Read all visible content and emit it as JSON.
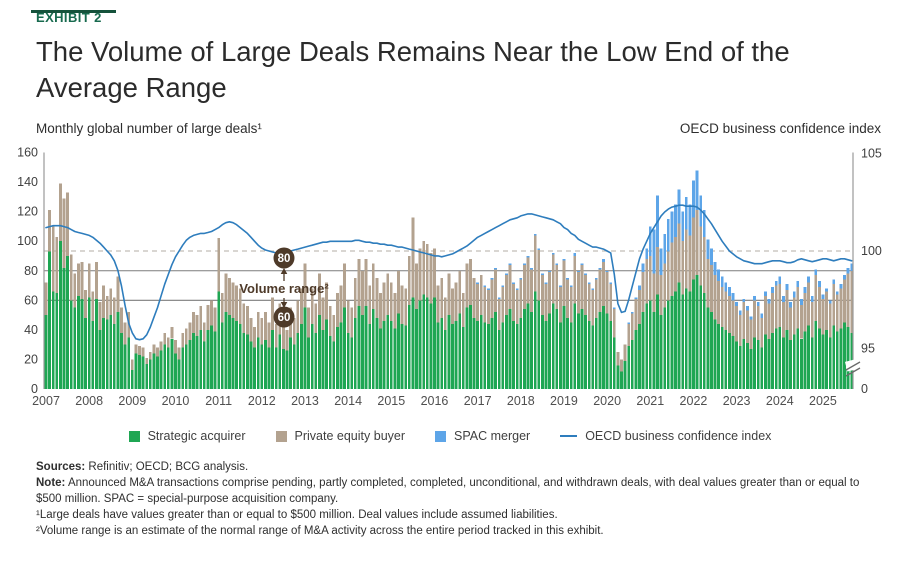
{
  "exhibit_label": "EXHIBIT 2",
  "title": "The Volume of Large Deals Remains Near the Low End of the\nAverage Range",
  "axis_titles": {
    "left": "Monthly global number of large deals¹",
    "right": "OECD business confidence index"
  },
  "footnotes": {
    "sources_label": "Sources:",
    "sources_text": " Refinitiv; OECD; BCG analysis.",
    "note_label": "Note:",
    "note_text": " Announced M&A transactions comprise pending, partly completed, completed, unconditional, and withdrawn deals, with deal values greater than or equal to $500 million. SPAC = special-purpose acquisition company.",
    "footnote1": "¹Large deals have values greater than or equal to $500 million. Deal values include assumed liabilities.",
    "footnote2": "²Volume range is an estimate of the normal range of M&A activity across the entire period tracked in this exhibit."
  },
  "chart_data": {
    "type": "bar",
    "stacked": true,
    "start_month": "2007-01",
    "end_month": "2025-09",
    "x_year_labels": [
      "2007",
      "2008",
      "2009",
      "2010",
      "2011",
      "2012",
      "2013",
      "2014",
      "2015",
      "2016",
      "2017",
      "2018",
      "2019",
      "2020",
      "2021",
      "2022",
      "2023",
      "2024",
      "2025"
    ],
    "left_axis": {
      "title": "Monthly global number of large deals¹",
      "ticks": [
        0,
        20,
        40,
        60,
        80,
        100,
        120,
        140,
        160
      ],
      "range": [
        0,
        160
      ]
    },
    "right_axis": {
      "title": "OECD business confidence index",
      "ticks_upper": [
        95,
        100,
        105
      ],
      "tick_zero": 0,
      "has_break": true
    },
    "reference_lines": {
      "dashed_right_value": 100,
      "volume_low": 60,
      "volume_high": 80
    },
    "volume_range": {
      "label": "Volume range²",
      "high_label": "80",
      "low_label": "60",
      "badge_color": "#4e3a29"
    },
    "series": [
      {
        "name": "Strategic acquirer",
        "color": "#1fa653",
        "values": [
          50,
          93,
          66,
          65,
          100,
          82,
          90,
          60,
          55,
          63,
          61,
          48,
          62,
          46,
          61,
          40,
          48,
          47,
          50,
          44,
          52,
          38,
          30,
          35,
          13,
          24,
          23,
          22,
          17,
          20,
          24,
          22,
          26,
          30,
          28,
          34,
          24,
          20,
          28,
          30,
          33,
          38,
          36,
          40,
          32,
          40,
          43,
          39,
          66,
          45,
          52,
          50,
          48,
          46,
          44,
          38,
          37,
          32,
          28,
          35,
          30,
          33,
          28,
          40,
          28,
          37,
          27,
          26,
          35,
          30,
          38,
          44,
          55,
          35,
          44,
          38,
          50,
          40,
          47,
          36,
          32,
          42,
          45,
          55,
          38,
          35,
          48,
          56,
          50,
          56,
          44,
          54,
          48,
          41,
          46,
          50,
          46,
          41,
          51,
          44,
          43,
          57,
          62,
          54,
          60,
          64,
          62,
          58,
          62,
          45,
          48,
          40,
          50,
          44,
          46,
          51,
          42,
          55,
          57,
          48,
          46,
          50,
          45,
          44,
          48,
          52,
          40,
          45,
          50,
          54,
          46,
          44,
          48,
          54,
          58,
          52,
          66,
          60,
          50,
          46,
          51,
          58,
          54,
          45,
          56,
          48,
          45,
          58,
          51,
          54,
          50,
          46,
          43,
          48,
          52,
          56,
          51,
          46,
          35,
          16,
          12,
          19,
          29,
          33,
          40,
          44,
          52,
          58,
          60,
          52,
          64,
          50,
          55,
          60,
          63,
          66,
          72,
          64,
          68,
          66,
          74,
          77,
          70,
          65,
          55,
          52,
          47,
          44,
          42,
          40,
          38,
          36,
          32,
          29,
          34,
          31,
          27,
          35,
          33,
          28,
          37,
          34,
          38,
          41,
          42,
          35,
          40,
          33,
          37,
          41,
          34,
          39,
          43,
          35,
          46,
          41,
          37,
          40,
          35,
          43,
          39,
          41,
          45,
          42,
          38
        ]
      },
      {
        "name": "Private equity buyer",
        "color": "#b3a28f",
        "values": [
          22,
          28,
          44,
          38,
          39,
          47,
          43,
          31,
          23,
          22,
          25,
          19,
          23,
          20,
          25,
          19,
          22,
          16,
          18,
          18,
          24,
          17,
          15,
          17,
          7,
          6,
          6,
          6,
          4,
          5,
          6,
          6,
          6,
          8,
          7,
          8,
          9,
          8,
          10,
          11,
          12,
          14,
          14,
          16,
          13,
          17,
          17,
          16,
          36,
          20,
          26,
          25,
          24,
          24,
          24,
          20,
          19,
          16,
          14,
          17,
          18,
          19,
          17,
          22,
          16,
          21,
          15,
          14,
          20,
          18,
          22,
          24,
          30,
          20,
          24,
          20,
          28,
          22,
          25,
          20,
          18,
          23,
          25,
          30,
          22,
          20,
          27,
          32,
          30,
          32,
          26,
          31,
          27,
          24,
          26,
          28,
          26,
          24,
          29,
          26,
          25,
          33,
          54,
          31,
          35,
          36,
          36,
          34,
          33,
          25,
          27,
          22,
          28,
          24,
          26,
          29,
          23,
          30,
          31,
          27,
          25,
          27,
          24,
          23,
          26,
          29,
          21,
          24,
          27,
          30,
          25,
          23,
          26,
          30,
          31,
          29,
          38,
          34,
          27,
          25,
          28,
          33,
          30,
          24,
          31,
          26,
          24,
          32,
          28,
          30,
          27,
          25,
          24,
          26,
          29,
          30,
          28,
          25,
          19,
          9,
          8,
          11,
          15,
          18,
          21,
          23,
          27,
          30,
          30,
          26,
          32,
          27,
          30,
          33,
          36,
          37,
          40,
          36,
          40,
          38,
          42,
          44,
          40,
          38,
          33,
          32,
          30,
          29,
          27,
          26,
          25,
          24,
          24,
          21,
          25,
          22,
          20,
          25,
          23,
          20,
          26,
          24,
          27,
          29,
          29,
          24,
          27,
          22,
          25,
          28,
          23,
          26,
          29,
          24,
          31,
          28,
          24,
          26,
          23,
          28,
          25,
          27,
          29,
          36,
          42
        ]
      },
      {
        "name": "SPAC merger",
        "color": "#5da5e8",
        "values": [
          0,
          0,
          0,
          0,
          0,
          0,
          0,
          0,
          0,
          0,
          0,
          0,
          0,
          0,
          0,
          0,
          0,
          0,
          0,
          0,
          0,
          0,
          0,
          0,
          0,
          0,
          0,
          0,
          0,
          0,
          0,
          0,
          0,
          0,
          0,
          0,
          0,
          0,
          0,
          0,
          0,
          0,
          0,
          0,
          0,
          0,
          0,
          0,
          0,
          0,
          0,
          0,
          0,
          0,
          0,
          0,
          0,
          0,
          0,
          0,
          0,
          0,
          0,
          0,
          0,
          0,
          0,
          0,
          0,
          0,
          0,
          0,
          0,
          0,
          0,
          0,
          0,
          0,
          0,
          0,
          0,
          0,
          0,
          0,
          0,
          0,
          0,
          0,
          0,
          0,
          0,
          0,
          0,
          0,
          0,
          0,
          0,
          0,
          0,
          0,
          0,
          0,
          0,
          0,
          0,
          0,
          0,
          0,
          0,
          0,
          0,
          0,
          0,
          0,
          0,
          0,
          0,
          0,
          0,
          0,
          1,
          0,
          1,
          1,
          1,
          1,
          1,
          1,
          1,
          1,
          1,
          1,
          1,
          1,
          1,
          1,
          1,
          1,
          1,
          1,
          1,
          1,
          1,
          1,
          1,
          1,
          1,
          2,
          1,
          1,
          1,
          1,
          1,
          1,
          1,
          2,
          1,
          1,
          1,
          0,
          0,
          0,
          1,
          1,
          1,
          3,
          6,
          7,
          20,
          30,
          35,
          18,
          20,
          22,
          21,
          22,
          23,
          20,
          22,
          21,
          25,
          27,
          21,
          18,
          13,
          11,
          9,
          8,
          7,
          6,
          6,
          5,
          3,
          3,
          2,
          3,
          2,
          3,
          3,
          3,
          3,
          3,
          4,
          3,
          5,
          4,
          4,
          4,
          4,
          4,
          4,
          4,
          4,
          4,
          4,
          4,
          3,
          2,
          2,
          3,
          2,
          3,
          3,
          4,
          5
        ]
      }
    ],
    "line": {
      "name": "OECD business confidence index",
      "color": "#2e7dbd",
      "axis": "right",
      "values": [
        101.2,
        101.25,
        101.3,
        101.3,
        101.3,
        101.25,
        101.2,
        101.1,
        101.0,
        100.95,
        100.9,
        100.85,
        100.8,
        100.7,
        100.55,
        100.4,
        100.2,
        100.0,
        99.8,
        99.5,
        99.0,
        98.2,
        97.2,
        96.3,
        95.8,
        95.5,
        95.45,
        95.5,
        95.7,
        96.1,
        96.6,
        97.1,
        97.7,
        98.3,
        98.8,
        99.3,
        99.7,
        100.0,
        100.3,
        100.55,
        100.7,
        100.8,
        100.85,
        100.9,
        100.9,
        100.95,
        101.0,
        101.1,
        101.2,
        101.35,
        101.45,
        101.5,
        101.45,
        101.35,
        101.2,
        101.05,
        100.9,
        100.7,
        100.5,
        100.3,
        100.15,
        100.05,
        100.0,
        99.95,
        99.9,
        99.9,
        99.9,
        99.95,
        100.0,
        100.05,
        100.1,
        100.15,
        100.2,
        100.25,
        100.3,
        100.35,
        100.4,
        100.45,
        100.45,
        100.5,
        100.5,
        100.5,
        100.5,
        100.5,
        100.5,
        100.5,
        100.55,
        100.55,
        100.5,
        100.45,
        100.45,
        100.4,
        100.4,
        100.35,
        100.35,
        100.3,
        100.3,
        100.25,
        100.2,
        100.2,
        100.15,
        100.1,
        100.05,
        100.0,
        99.95,
        99.9,
        99.85,
        99.8,
        99.75,
        99.75,
        99.7,
        99.75,
        99.8,
        99.85,
        99.95,
        100.05,
        100.15,
        100.25,
        100.4,
        100.55,
        100.7,
        100.8,
        100.9,
        101.0,
        101.1,
        101.2,
        101.3,
        101.4,
        101.5,
        101.6,
        101.65,
        101.7,
        101.8,
        101.85,
        101.9,
        101.9,
        101.85,
        101.8,
        101.75,
        101.7,
        101.65,
        101.6,
        101.5,
        101.4,
        101.2,
        101.1,
        100.9,
        100.8,
        100.6,
        100.5,
        100.4,
        100.3,
        100.2,
        100.2,
        100.15,
        100.1,
        100.0,
        99.9,
        98.8,
        97.3,
        96.85,
        96.9,
        97.5,
        98.2,
        98.9,
        99.6,
        100.1,
        100.5,
        100.9,
        101.2,
        101.5,
        101.8,
        102.0,
        102.15,
        102.25,
        102.3,
        102.35,
        102.35,
        102.3,
        102.3,
        102.3,
        102.25,
        102.1,
        101.9,
        101.65,
        101.4,
        101.1,
        100.8,
        100.5,
        100.25,
        100.0,
        99.85,
        99.7,
        99.6,
        99.5,
        99.45,
        99.4,
        99.35,
        99.35,
        99.35,
        99.4,
        99.45,
        99.5,
        99.5,
        99.5,
        99.45,
        99.4,
        99.4,
        99.45,
        99.55,
        99.6,
        99.55,
        99.5,
        99.45,
        99.5,
        99.55,
        99.6,
        99.6,
        99.55,
        99.5,
        99.55,
        99.6,
        99.6,
        99.55,
        99.5
      ]
    }
  }
}
